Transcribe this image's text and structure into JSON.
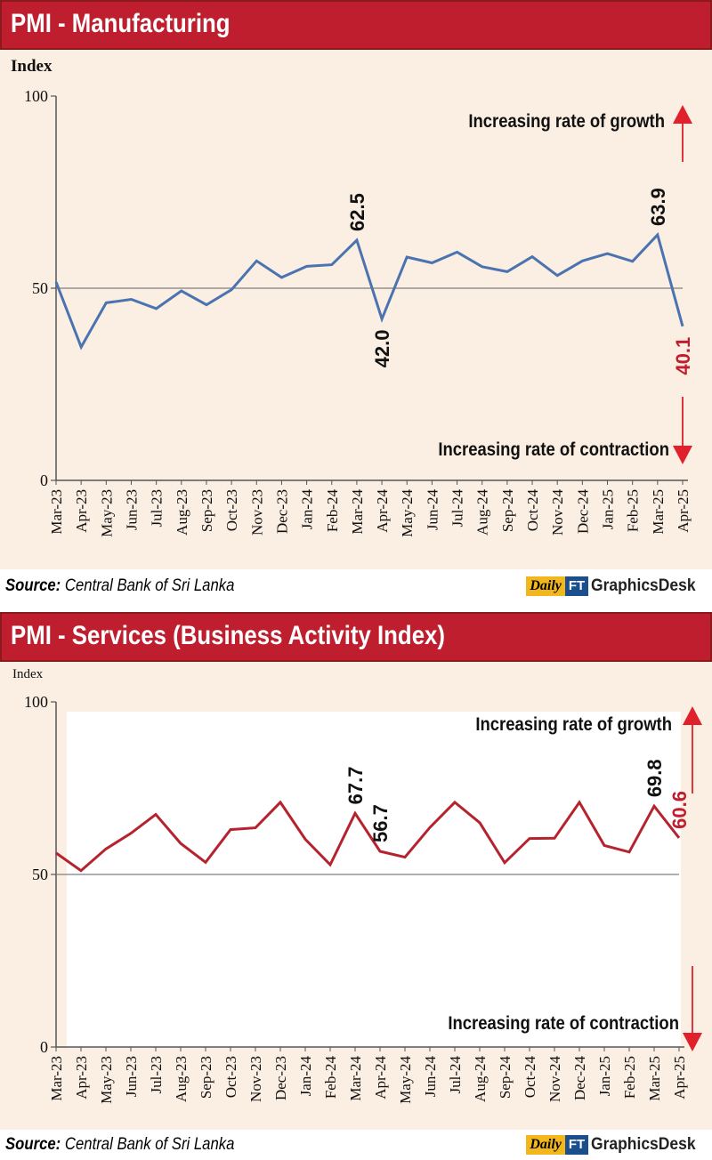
{
  "chart_data": [
    {
      "type": "line",
      "title": "PMI - Manufacturing",
      "ylabel": "Index",
      "xlabel": "",
      "ylim": [
        0,
        100
      ],
      "yticks": [
        0,
        50,
        100
      ],
      "reference_line": 50,
      "grid": false,
      "categories": [
        "Mar-23",
        "Apr-23",
        "May-23",
        "Jun-23",
        "Jul-23",
        "Aug-23",
        "Sep-23",
        "Oct-23",
        "Nov-23",
        "Dec-23",
        "Jan-24",
        "Feb-24",
        "Mar-24",
        "Apr-24",
        "May-24",
        "Jun-24",
        "Jul-24",
        "Aug-24",
        "Sep-24",
        "Oct-24",
        "Nov-24",
        "Dec-24",
        "Jan-25",
        "Feb-25",
        "Mar-25",
        "Apr-25"
      ],
      "series": [
        {
          "color": "#4a73b0",
          "values": [
            51.6,
            34.7,
            46.2,
            47.1,
            44.7,
            49.3,
            45.7,
            49.6,
            57.1,
            52.8,
            55.7,
            56.1,
            62.5,
            42.0,
            58.1,
            56.6,
            59.4,
            55.6,
            54.3,
            58.2,
            53.3,
            57.1,
            59.0,
            57.0,
            63.9,
            40.1
          ]
        }
      ],
      "data_labels": [
        {
          "index": 12,
          "text": "62.5",
          "position": "above",
          "color": "#111111"
        },
        {
          "index": 13,
          "text": "42.0",
          "position": "below",
          "color": "#111111"
        },
        {
          "index": 24,
          "text": "63.9",
          "position": "above",
          "color": "#111111"
        },
        {
          "index": 25,
          "text": "40.1",
          "position": "below",
          "color": "#bf1e2e"
        }
      ],
      "annotations": {
        "growth": "Increasing rate of growth",
        "contraction": "Increasing rate of contraction"
      },
      "arrow_color": "#e0202a"
    },
    {
      "type": "line",
      "title": "PMI - Services (Business Activity Index)",
      "ylabel": "Index",
      "xlabel": "",
      "ylim": [
        0,
        100
      ],
      "yticks": [
        0,
        50,
        100
      ],
      "reference_line": 50,
      "grid": false,
      "categories": [
        "Mar-23",
        "Apr-23",
        "May-23",
        "Jun-23",
        "Jul-23",
        "Aug-23",
        "Sep-23",
        "Oct-23",
        "Nov-23",
        "Dec-23",
        "Jan-24",
        "Feb-24",
        "Mar-24",
        "Apr-24",
        "May-24",
        "Jun-24",
        "Jul-24",
        "Aug-24",
        "Sep-24",
        "Oct-24",
        "Nov-24",
        "Dec-24",
        "Jan-25",
        "Feb-25",
        "Mar-25",
        "Apr-25"
      ],
      "series": [
        {
          "color": "#b5232e",
          "values": [
            56.2,
            51.1,
            57.4,
            61.9,
            67.4,
            59.0,
            53.5,
            63.0,
            63.5,
            70.9,
            60.2,
            52.8,
            67.7,
            56.7,
            55.0,
            63.6,
            70.9,
            65.0,
            53.4,
            60.4,
            60.5,
            70.9,
            58.4,
            56.5,
            69.8,
            60.6
          ]
        }
      ],
      "data_labels": [
        {
          "index": 12,
          "text": "67.7",
          "position": "above",
          "color": "#111111"
        },
        {
          "index": 13,
          "text": "56.7",
          "position": "above",
          "color": "#111111"
        },
        {
          "index": 24,
          "text": "69.8",
          "position": "above",
          "color": "#111111"
        },
        {
          "index": 25,
          "text": "60.6",
          "position": "above",
          "color": "#bf1e2e"
        }
      ],
      "annotations": {
        "growth": "Increasing rate of growth",
        "contraction": "Increasing rate of contraction"
      },
      "arrow_color": "#e0202a"
    }
  ],
  "sources": [
    {
      "label": "Source:",
      "text": "Central Bank of Sri Lanka"
    },
    {
      "label": "Source:",
      "text": "Central Bank of Sri Lanka"
    }
  ],
  "logo": {
    "daily": "Daily",
    "ft": "FT",
    "desk": "GraphicsDesk"
  },
  "colors": {
    "header_bg": "#bf1e2e",
    "panel_bg": "#fbeee2",
    "ref_line": "#7f7f7f"
  }
}
